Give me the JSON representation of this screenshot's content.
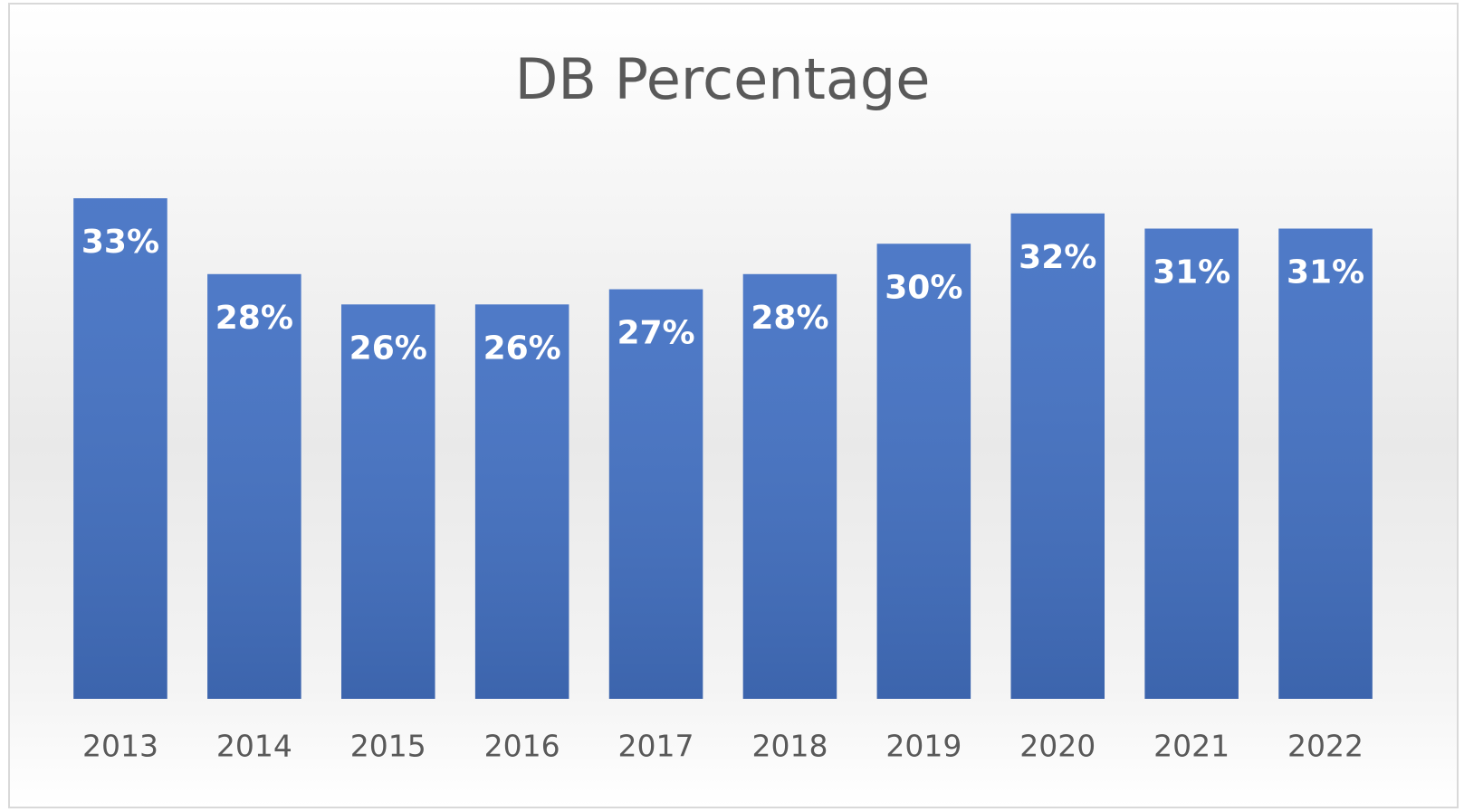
{
  "chart_data": {
    "type": "bar",
    "title": "DB Percentage",
    "categories": [
      "2013",
      "2014",
      "2015",
      "2016",
      "2017",
      "2018",
      "2019",
      "2020",
      "2021",
      "2022"
    ],
    "values": [
      33,
      28,
      26,
      26,
      27,
      28,
      30,
      32,
      31,
      31
    ],
    "value_labels": [
      "33%",
      "28%",
      "26%",
      "26%",
      "27%",
      "28%",
      "30%",
      "32%",
      "31%",
      "31%"
    ],
    "color": "#4472c4",
    "ylim": [
      0,
      33
    ]
  }
}
